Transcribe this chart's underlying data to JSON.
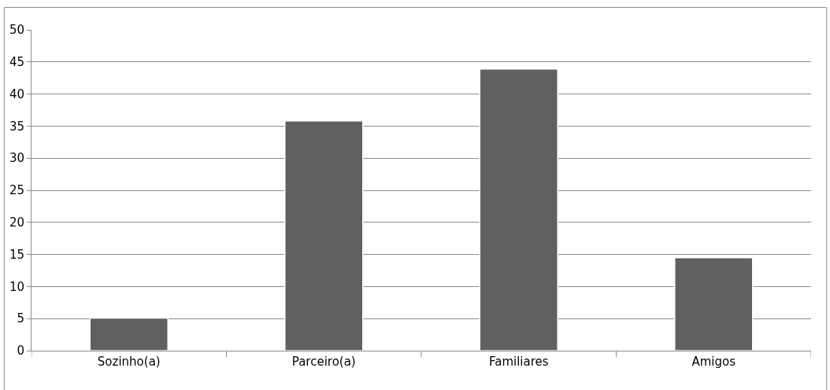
{
  "chart_data": {
    "type": "bar",
    "categories": [
      "Sozinho(a)",
      "Parceiro(a)",
      "Familiares",
      "Amigos"
    ],
    "values": [
      5.1,
      35.8,
      43.9,
      14.5
    ],
    "color": "#606060",
    "ylim": [
      0,
      50
    ],
    "yticks": [
      0,
      5,
      10,
      15,
      20,
      25,
      30,
      35,
      40,
      45,
      50
    ],
    "grid": "y"
  }
}
